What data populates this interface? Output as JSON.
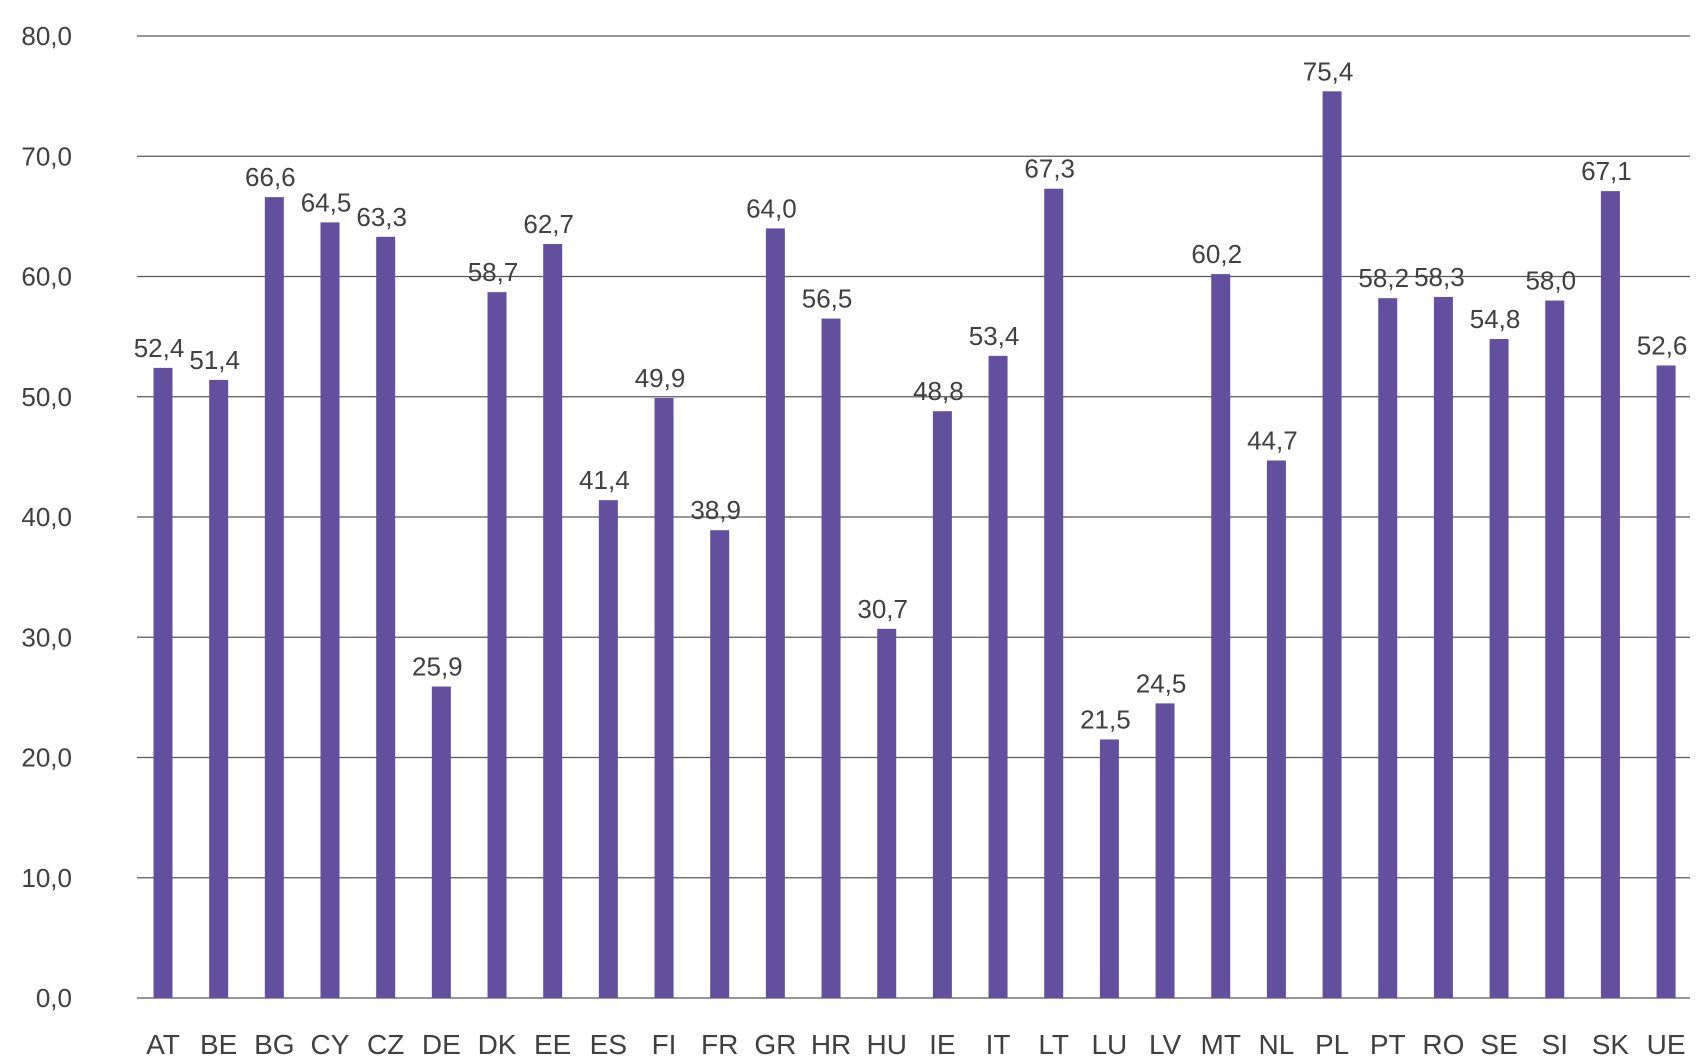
{
  "chart_data": {
    "type": "bar",
    "categories": [
      "AT",
      "BE",
      "BG",
      "CY",
      "CZ",
      "DE",
      "DK",
      "EE",
      "ES",
      "FI",
      "FR",
      "GR",
      "HR",
      "HU",
      "IE",
      "IT",
      "LT",
      "LU",
      "LV",
      "MT",
      "NL",
      "PL",
      "PT",
      "RO",
      "SE",
      "SI",
      "SK",
      "UE"
    ],
    "values": [
      52.4,
      51.4,
      66.6,
      64.5,
      63.3,
      25.9,
      58.7,
      62.7,
      41.4,
      49.9,
      38.9,
      64.0,
      56.5,
      30.7,
      48.8,
      53.4,
      67.3,
      21.5,
      24.5,
      60.2,
      44.7,
      75.4,
      58.2,
      58.3,
      54.8,
      58.0,
      67.1,
      52.6
    ],
    "value_labels": [
      "52,4",
      "51,4",
      "66,6",
      "64,5",
      "63,3",
      "25,9",
      "58,7",
      "62,7",
      "41,4",
      "49,9",
      "38,9",
      "64,0",
      "56,5",
      "30,7",
      "48,8",
      "53,4",
      "67,3",
      "21,5",
      "24,5",
      "60,2",
      "44,7",
      "75,4",
      "58,2",
      "58,3",
      "54,8",
      "58,0",
      "67,1",
      "52,6"
    ],
    "y_ticks": [
      0,
      10,
      20,
      30,
      40,
      50,
      60,
      70,
      80
    ],
    "y_tick_labels": [
      "0,0",
      "10,0",
      "20,0",
      "30,0",
      "40,0",
      "50,0",
      "60,0",
      "70,0",
      "80,0"
    ],
    "ylim": [
      0,
      80
    ],
    "grid": true,
    "bar_color": "#62509E",
    "title": "",
    "xlabel": "",
    "ylabel": ""
  }
}
